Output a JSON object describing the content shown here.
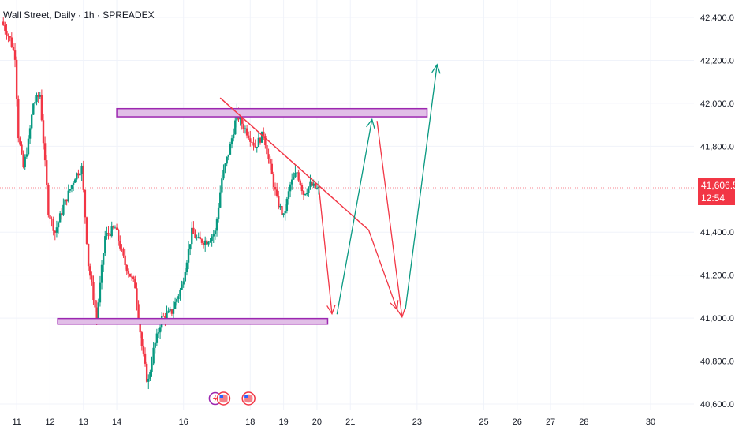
{
  "header": {
    "symbol_label": "Wall Street, Daily · 1h · SPREADEX"
  },
  "price_badge": {
    "price": "41,606.5",
    "countdown": "12:54"
  },
  "colors": {
    "up": "#089981",
    "down": "#f23645",
    "zone_stroke": "#9c27b0",
    "zone_fill": "#e1bee7",
    "arrow_red": "#f23645",
    "arrow_teal": "#089981",
    "grid": "#f0f3fa",
    "background": "#ffffff"
  },
  "chart_data": {
    "type": "candlestick",
    "title": "",
    "y_axis": {
      "min": 40600,
      "max": 42450,
      "position": "right",
      "ticks": [
        42400,
        42200,
        42000,
        41800,
        41600,
        41400,
        41200,
        41000,
        40800,
        40600
      ],
      "tick_labels": [
        "42,400.0",
        "42,200.0",
        "42,000.0",
        "41,800.0",
        "41,600.0",
        "41,400.0",
        "41,200.0",
        "41,000.0",
        "40,800.0",
        "40,600.0"
      ]
    },
    "x_axis": {
      "min": 10.5,
      "max": 31.3,
      "ticks": [
        11,
        12,
        13,
        14,
        16,
        18,
        19,
        20,
        21,
        23,
        25,
        26,
        27,
        28,
        30
      ],
      "tick_labels": [
        "11",
        "12",
        "13",
        "14",
        "16",
        "18",
        "19",
        "20",
        "21",
        "23",
        "25",
        "26",
        "27",
        "28",
        "30"
      ]
    },
    "grid": true,
    "current_price": 41606.5,
    "price_anchors": [
      [
        10.6,
        42380
      ],
      [
        10.85,
        42300
      ],
      [
        11.0,
        42220
      ],
      [
        11.1,
        41850
      ],
      [
        11.25,
        41700
      ],
      [
        11.4,
        41820
      ],
      [
        11.55,
        42000
      ],
      [
        11.75,
        42040
      ],
      [
        12.0,
        41500
      ],
      [
        12.2,
        41400
      ],
      [
        12.45,
        41520
      ],
      [
        12.8,
        41660
      ],
      [
        13.0,
        41700
      ],
      [
        13.2,
        41250
      ],
      [
        13.45,
        41000
      ],
      [
        13.7,
        41380
      ],
      [
        14.0,
        41420
      ],
      [
        14.3,
        41250
      ],
      [
        14.6,
        41150
      ],
      [
        14.8,
        40870
      ],
      [
        14.98,
        40690
      ],
      [
        15.15,
        40850
      ],
      [
        15.4,
        41000
      ],
      [
        15.7,
        41030
      ],
      [
        16.0,
        41150
      ],
      [
        16.3,
        41400
      ],
      [
        16.5,
        41360
      ],
      [
        16.75,
        41360
      ],
      [
        17.0,
        41400
      ],
      [
        17.2,
        41650
      ],
      [
        17.45,
        41800
      ],
      [
        17.65,
        41950
      ],
      [
        17.9,
        41880
      ],
      [
        18.2,
        41800
      ],
      [
        18.45,
        41860
      ],
      [
        18.65,
        41700
      ],
      [
        18.85,
        41550
      ],
      [
        19.05,
        41470
      ],
      [
        19.25,
        41620
      ],
      [
        19.45,
        41680
      ],
      [
        19.65,
        41580
      ],
      [
        19.85,
        41620
      ],
      [
        20.05,
        41600
      ]
    ],
    "zones": [
      {
        "name": "resistance-zone",
        "x_start": 14.0,
        "x_end": 23.3,
        "y_low": 41937,
        "y_high": 41975
      },
      {
        "name": "support-zone",
        "x_start": 12.23,
        "x_end": 20.32,
        "y_low": 40972,
        "y_high": 40998
      }
    ],
    "trendline": {
      "from": [
        17.1,
        42025
      ],
      "to": [
        20.05,
        41630
      ],
      "extend_to": [
        21.55,
        41410
      ]
    },
    "arrows": [
      {
        "color": "red",
        "from": [
          20.05,
          41620
        ],
        "to": [
          20.45,
          41020
        ]
      },
      {
        "color": "teal",
        "from": [
          20.6,
          41018
        ],
        "to": [
          21.65,
          41925
        ]
      },
      {
        "color": "red",
        "from": [
          21.55,
          41410
        ],
        "to": [
          22.4,
          41040
        ]
      },
      {
        "color": "red",
        "from": [
          21.8,
          41918
        ],
        "to": [
          22.55,
          41005
        ]
      },
      {
        "color": "teal",
        "from": [
          22.65,
          41040
        ],
        "to": [
          23.6,
          42180
        ]
      }
    ],
    "event_markers": [
      {
        "icon": "lightning-icon",
        "x": 16.95
      },
      {
        "icon": "us-flag-icon",
        "x": 17.2
      },
      {
        "icon": "us-flag-icon",
        "x": 17.95
      }
    ]
  }
}
